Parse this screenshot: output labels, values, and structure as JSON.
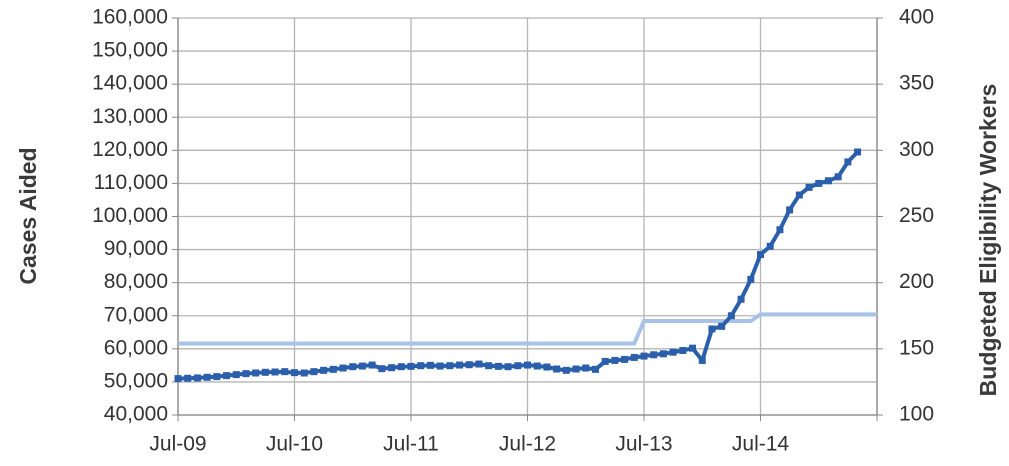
{
  "chart_data": {
    "type": "line",
    "y_label": "Cases Aided",
    "y2_label": "Budgeted Eligibility Workers",
    "x": [
      "2009-07",
      "2009-08",
      "2009-09",
      "2009-10",
      "2009-11",
      "2009-12",
      "2010-01",
      "2010-02",
      "2010-03",
      "2010-04",
      "2010-05",
      "2010-06",
      "2010-07",
      "2010-08",
      "2010-09",
      "2010-10",
      "2010-11",
      "2010-12",
      "2011-01",
      "2011-02",
      "2011-03",
      "2011-04",
      "2011-05",
      "2011-06",
      "2011-07",
      "2011-08",
      "2011-09",
      "2011-10",
      "2011-11",
      "2011-12",
      "2012-01",
      "2012-02",
      "2012-03",
      "2012-04",
      "2012-05",
      "2012-06",
      "2012-07",
      "2012-08",
      "2012-09",
      "2012-10",
      "2012-11",
      "2012-12",
      "2013-01",
      "2013-02",
      "2013-03",
      "2013-04",
      "2013-05",
      "2013-06",
      "2013-07",
      "2013-08",
      "2013-09",
      "2013-10",
      "2013-11",
      "2013-12",
      "2014-01",
      "2014-02",
      "2014-03",
      "2014-04",
      "2014-05",
      "2014-06",
      "2014-07",
      "2014-08",
      "2014-09",
      "2014-10",
      "2014-11",
      "2014-12",
      "2015-01",
      "2015-02",
      "2015-03",
      "2015-04",
      "2015-05",
      "2015-06",
      "2015-07"
    ],
    "series": [
      {
        "name": "Cases Aided",
        "color": "#2b5fab",
        "axis": "y",
        "values": [
          51000,
          51100,
          51200,
          51400,
          51600,
          51900,
          52200,
          52500,
          52700,
          52900,
          53000,
          53100,
          52800,
          52700,
          53100,
          53500,
          53800,
          54200,
          54600,
          54800,
          55100,
          54000,
          54300,
          54600,
          54700,
          54900,
          55000,
          54800,
          54900,
          55100,
          55200,
          55400,
          54900,
          54700,
          54600,
          54900,
          55100,
          54800,
          54500,
          53900,
          53500,
          53900,
          54200,
          53800,
          56200,
          56500,
          56800,
          57400,
          57800,
          58200,
          58500,
          59000,
          59500,
          60200,
          56500,
          66000,
          66800,
          70000,
          75000,
          81000,
          88500,
          91000,
          96000,
          102000,
          106500,
          108800,
          110000,
          110800,
          112000,
          116500,
          119500,
          null,
          null
        ]
      },
      {
        "name": "Budgeted Eligibility Workers",
        "color": "#a8c3e8",
        "axis": "y2",
        "values": [
          154,
          154,
          154,
          154,
          154,
          154,
          154,
          154,
          154,
          154,
          154,
          154,
          154,
          154,
          154,
          154,
          154,
          154,
          154,
          154,
          154,
          154,
          154,
          154,
          154,
          154,
          154,
          154,
          154,
          154,
          154,
          154,
          154,
          154,
          154,
          154,
          154,
          154,
          154,
          154,
          154,
          154,
          154,
          154,
          154,
          154,
          154,
          154,
          171,
          171,
          171,
          171,
          171,
          171,
          171,
          171,
          171,
          171,
          171,
          171,
          176,
          176,
          176,
          176,
          176,
          176,
          176,
          176,
          176,
          176,
          176,
          176,
          176
        ]
      }
    ],
    "xlim": [
      "2009-07",
      "2015-07"
    ],
    "xticks": [
      {
        "value": "2009-07",
        "label": "Jul-09"
      },
      {
        "value": "2010-07",
        "label": "Jul-10"
      },
      {
        "value": "2011-07",
        "label": "Jul-11"
      },
      {
        "value": "2012-07",
        "label": "Jul-12"
      },
      {
        "value": "2013-07",
        "label": "Jul-13"
      },
      {
        "value": "2014-07",
        "label": "Jul-14"
      },
      {
        "value": "2015-07",
        "label": ""
      }
    ],
    "ylim": [
      40000,
      160000
    ],
    "yticks": [
      {
        "value": 40000,
        "label": "40,000"
      },
      {
        "value": 50000,
        "label": "50,000"
      },
      {
        "value": 60000,
        "label": "60,000"
      },
      {
        "value": 70000,
        "label": "70,000"
      },
      {
        "value": 80000,
        "label": "80,000"
      },
      {
        "value": 90000,
        "label": "90,000"
      },
      {
        "value": 100000,
        "label": "100,000"
      },
      {
        "value": 110000,
        "label": "110,000"
      },
      {
        "value": 120000,
        "label": "120,000"
      },
      {
        "value": 130000,
        "label": "130,000"
      },
      {
        "value": 140000,
        "label": "140,000"
      },
      {
        "value": 150000,
        "label": "150,000"
      },
      {
        "value": 160000,
        "label": "160,000"
      }
    ],
    "y2lim": [
      100,
      400
    ],
    "y2ticks": [
      100,
      150,
      200,
      250,
      300,
      350,
      400
    ],
    "grid": true
  }
}
